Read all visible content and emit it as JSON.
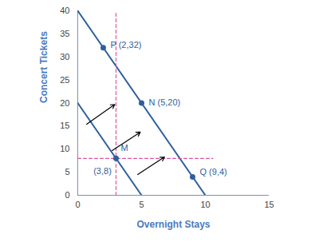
{
  "chart_data": {
    "type": "line",
    "x_label": "Overnight Stays",
    "y_label": "Concert Tickets",
    "xlim": [
      0,
      15
    ],
    "ylim": [
      0,
      40
    ],
    "xticks": [
      0,
      5,
      10,
      15
    ],
    "yticks": [
      0,
      5,
      10,
      15,
      20,
      25,
      30,
      35,
      40
    ],
    "series": [
      {
        "color": "#2f5f9e",
        "line_style": "solid",
        "x": [
          0,
          5
        ],
        "values": [
          20,
          0
        ]
      },
      {
        "color": "#2f5f9e",
        "line_style": "solid",
        "x": [
          0,
          10
        ],
        "values": [
          40,
          0
        ]
      },
      {
        "color": "#d9569e",
        "line_style": "dashed",
        "x": [
          3,
          3
        ],
        "values": [
          0,
          40
        ]
      },
      {
        "color": "#d9569e",
        "line_style": "dashed",
        "x": [
          0,
          10.6
        ],
        "values": [
          8,
          8
        ]
      }
    ],
    "points": {
      "color": "#2f5f9e",
      "x": [
        2,
        5,
        3,
        9
      ],
      "values": [
        32,
        20,
        8,
        4
      ]
    },
    "annotations": [
      {
        "text": "P (2,32)",
        "x": 2,
        "y": 32
      },
      {
        "text": "N (5,20)",
        "x": 5,
        "y": 20
      },
      {
        "text": "M",
        "x": 3,
        "y": 8
      },
      {
        "text": "(3,8)",
        "x": 3,
        "y": 8
      },
      {
        "text": "Q (9,4)",
        "x": 9,
        "y": 4
      }
    ],
    "arrows": [
      {
        "x1": 0.7,
        "y1": 15.4,
        "x2": 2.9,
        "y2": 19.7
      },
      {
        "x1": 2.7,
        "y1": 9.7,
        "x2": 4.9,
        "y2": 13.7
      },
      {
        "x1": 4.7,
        "y1": 4.5,
        "x2": 6.8,
        "y2": 8.3
      }
    ]
  }
}
